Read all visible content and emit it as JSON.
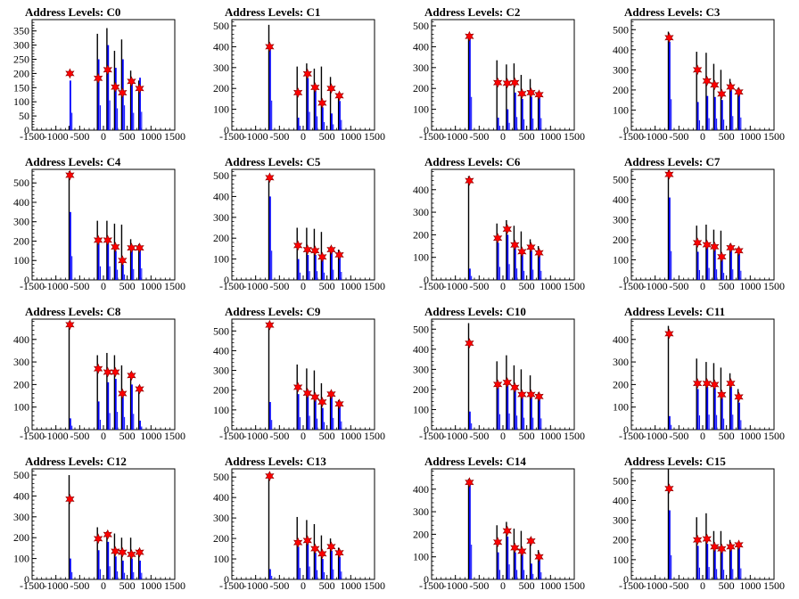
{
  "chart_data": [
    {
      "type": "histogram",
      "title": "Address Levels: C0",
      "xlim": [
        -1500,
        1500
      ],
      "ylim": [
        0,
        390
      ],
      "xticks": [
        -1500,
        -1000,
        -500,
        0,
        500,
        1000,
        1500
      ],
      "xtick_labels": [
        "-1500",
        "-1000",
        "-500",
        "0",
        "500",
        "1000",
        "1500"
      ],
      "yticks": [
        0,
        50,
        100,
        150,
        200,
        250,
        300,
        350
      ],
      "peaks_x": [
        -705,
        -110,
        90,
        250,
        400,
        590,
        760
      ],
      "black_bars": [
        15,
        340,
        360,
        280,
        320,
        210,
        175
      ],
      "blue_bars": [
        175,
        250,
        300,
        220,
        250,
        175,
        185
      ],
      "markers": [
        200,
        183,
        213,
        152,
        132,
        172,
        147
      ]
    },
    {
      "type": "histogram",
      "title": "Address Levels: C1",
      "xlim": [
        -1500,
        1500
      ],
      "ylim": [
        0,
        530
      ],
      "xticks": [
        -1500,
        -1000,
        -500,
        0,
        500,
        1000,
        1500
      ],
      "xtick_labels": [
        "-1500",
        "-1000",
        "-500",
        "0",
        "500",
        "1000",
        "1500"
      ],
      "yticks": [
        0,
        100,
        200,
        300,
        400,
        500
      ],
      "peaks_x": [
        -705,
        -110,
        90,
        250,
        400,
        590,
        760
      ],
      "black_bars": [
        505,
        305,
        320,
        295,
        305,
        255,
        175
      ],
      "blue_bars": [
        405,
        60,
        250,
        190,
        110,
        80,
        140
      ],
      "markers": [
        400,
        180,
        270,
        205,
        130,
        200,
        165
      ]
    },
    {
      "type": "histogram",
      "title": "Address Levels: C2",
      "xlim": [
        -1500,
        1500
      ],
      "ylim": [
        0,
        530
      ],
      "xticks": [
        -1500,
        -1000,
        -500,
        0,
        500,
        1000,
        1500
      ],
      "xtick_labels": [
        "-1500",
        "-1000",
        "-500",
        "0",
        "500",
        "1000",
        "1500"
      ],
      "yticks": [
        0,
        100,
        200,
        300,
        400,
        500
      ],
      "peaks_x": [
        -705,
        -110,
        90,
        250,
        400,
        590,
        760
      ],
      "black_bars": [
        455,
        335,
        315,
        320,
        265,
        245,
        185
      ],
      "blue_bars": [
        455,
        60,
        100,
        180,
        150,
        160,
        165
      ],
      "markers": [
        450,
        228,
        225,
        228,
        175,
        180,
        170
      ]
    },
    {
      "type": "histogram",
      "title": "Address Levels: C3",
      "xlim": [
        -1500,
        1500
      ],
      "ylim": [
        0,
        550
      ],
      "xticks": [
        -1500,
        -1000,
        -500,
        0,
        500,
        1000,
        1500
      ],
      "xtick_labels": [
        "-1500",
        "-1000",
        "-500",
        "0",
        "500",
        "1000",
        "1500"
      ],
      "yticks": [
        0,
        100,
        200,
        300,
        400,
        500
      ],
      "peaks_x": [
        -705,
        -110,
        90,
        250,
        400,
        590,
        760
      ],
      "black_bars": [
        490,
        390,
        385,
        330,
        300,
        255,
        210
      ],
      "blue_bars": [
        440,
        140,
        170,
        165,
        150,
        200,
        180
      ],
      "markers": [
        460,
        300,
        245,
        225,
        180,
        215,
        190
      ]
    },
    {
      "type": "histogram",
      "title": "Address Levels: C4",
      "xlim": [
        -1500,
        1500
      ],
      "ylim": [
        0,
        570
      ],
      "xticks": [
        -1500,
        -1000,
        -500,
        0,
        500,
        1000,
        1500
      ],
      "xtick_labels": [
        "-1500",
        "-1000",
        "-500",
        "0",
        "500",
        "1000",
        "1500"
      ],
      "yticks": [
        0,
        100,
        200,
        300,
        400,
        500
      ],
      "peaks_x": [
        -705,
        -110,
        90,
        250,
        400,
        590,
        760
      ],
      "black_bars": [
        560,
        305,
        305,
        290,
        285,
        210,
        185
      ],
      "blue_bars": [
        350,
        200,
        200,
        150,
        80,
        160,
        170
      ],
      "markers": [
        540,
        205,
        205,
        170,
        100,
        165,
        165
      ]
    },
    {
      "type": "histogram",
      "title": "Address Levels: C5",
      "xlim": [
        -1500,
        1500
      ],
      "ylim": [
        0,
        530
      ],
      "xticks": [
        -1500,
        -1000,
        -500,
        0,
        500,
        1000,
        1500
      ],
      "xtick_labels": [
        "-1500",
        "-1000",
        "-500",
        "0",
        "500",
        "1000",
        "1500"
      ],
      "yticks": [
        0,
        100,
        200,
        300,
        400,
        500
      ],
      "peaks_x": [
        -705,
        -110,
        90,
        250,
        400,
        590,
        760
      ],
      "black_bars": [
        500,
        250,
        250,
        245,
        230,
        160,
        145
      ],
      "blue_bars": [
        400,
        100,
        120,
        120,
        100,
        140,
        110
      ],
      "markers": [
        490,
        165,
        145,
        140,
        110,
        145,
        120
      ]
    },
    {
      "type": "histogram",
      "title": "Address Levels: C6",
      "xlim": [
        -1500,
        1500
      ],
      "ylim": [
        0,
        490
      ],
      "xticks": [
        -1500,
        -1000,
        -500,
        0,
        500,
        1000,
        1500
      ],
      "xtick_labels": [
        "-1500",
        "-1000",
        "-500",
        "0",
        "500",
        "1000",
        "1500"
      ],
      "yticks": [
        0,
        100,
        200,
        300,
        400
      ],
      "peaks_x": [
        -705,
        -110,
        90,
        250,
        400,
        590,
        760
      ],
      "black_bars": [
        460,
        250,
        265,
        240,
        215,
        180,
        150
      ],
      "blue_bars": [
        50,
        165,
        200,
        145,
        115,
        130,
        115
      ],
      "markers": [
        440,
        185,
        225,
        155,
        125,
        145,
        120
      ]
    },
    {
      "type": "histogram",
      "title": "Address Levels: C7",
      "xlim": [
        -1500,
        1500
      ],
      "ylim": [
        0,
        550
      ],
      "xticks": [
        -1500,
        -1000,
        -500,
        0,
        500,
        1000,
        1500
      ],
      "xtick_labels": [
        "-1500",
        "-1000",
        "-500",
        "0",
        "500",
        "1000",
        "1500"
      ],
      "yticks": [
        0,
        100,
        200,
        300,
        400,
        500
      ],
      "peaks_x": [
        -705,
        -110,
        90,
        250,
        400,
        590,
        760
      ],
      "black_bars": [
        545,
        270,
        275,
        250,
        245,
        180,
        160
      ],
      "blue_bars": [
        410,
        140,
        170,
        150,
        100,
        150,
        130
      ],
      "markers": [
        525,
        185,
        175,
        165,
        115,
        160,
        145
      ]
    },
    {
      "type": "histogram",
      "title": "Address Levels: C8",
      "xlim": [
        -1500,
        1500
      ],
      "ylim": [
        0,
        490
      ],
      "xticks": [
        -1500,
        -1000,
        -500,
        0,
        500,
        1000,
        1500
      ],
      "xtick_labels": [
        "-1500",
        "-1000",
        "-500",
        "0",
        "500",
        "1000",
        "1500"
      ],
      "yticks": [
        0,
        100,
        200,
        300,
        400
      ],
      "peaks_x": [
        -705,
        -110,
        90,
        250,
        400,
        590,
        760
      ],
      "black_bars": [
        480,
        330,
        340,
        330,
        285,
        255,
        195
      ],
      "blue_bars": [
        50,
        125,
        210,
        225,
        160,
        200,
        40
      ],
      "markers": [
        465,
        270,
        255,
        255,
        160,
        240,
        180
      ]
    },
    {
      "type": "histogram",
      "title": "Address Levels: C9",
      "xlim": [
        -1500,
        1500
      ],
      "ylim": [
        0,
        560
      ],
      "xticks": [
        -1500,
        -1000,
        -500,
        0,
        500,
        1000,
        1500
      ],
      "xtick_labels": [
        "-1500",
        "-1000",
        "-500",
        "0",
        "500",
        "1000",
        "1500"
      ],
      "yticks": [
        0,
        100,
        200,
        300,
        400,
        500
      ],
      "peaks_x": [
        -705,
        -110,
        90,
        250,
        400,
        590,
        760
      ],
      "black_bars": [
        545,
        330,
        310,
        300,
        235,
        195,
        150
      ],
      "blue_bars": [
        140,
        180,
        200,
        160,
        110,
        170,
        120
      ],
      "markers": [
        530,
        215,
        185,
        165,
        140,
        180,
        130
      ]
    },
    {
      "type": "histogram",
      "title": "Address Levels: C10",
      "xlim": [
        -1500,
        1500
      ],
      "ylim": [
        0,
        550
      ],
      "xticks": [
        -1500,
        -1000,
        -500,
        0,
        500,
        1000,
        1500
      ],
      "xtick_labels": [
        "-1500",
        "-1000",
        "-500",
        "0",
        "500",
        "1000",
        "1500"
      ],
      "yticks": [
        0,
        100,
        200,
        300,
        400,
        500
      ],
      "peaks_x": [
        -705,
        -110,
        90,
        250,
        400,
        590,
        760
      ],
      "black_bars": [
        530,
        340,
        370,
        320,
        300,
        270,
        185
      ],
      "blue_bars": [
        90,
        220,
        230,
        200,
        170,
        170,
        160
      ],
      "markers": [
        430,
        225,
        235,
        210,
        175,
        175,
        165
      ]
    },
    {
      "type": "histogram",
      "title": "Address Levels: C11",
      "xlim": [
        -1500,
        1500
      ],
      "ylim": [
        0,
        490
      ],
      "xticks": [
        -1500,
        -1000,
        -500,
        0,
        500,
        1000,
        1500
      ],
      "xtick_labels": [
        "-1500",
        "-1000",
        "-500",
        "0",
        "500",
        "1000",
        "1500"
      ],
      "yticks": [
        0,
        100,
        200,
        300,
        400
      ],
      "peaks_x": [
        -705,
        -110,
        90,
        250,
        400,
        590,
        760
      ],
      "black_bars": [
        460,
        315,
        300,
        295,
        275,
        250,
        180
      ],
      "blue_bars": [
        60,
        180,
        190,
        185,
        140,
        190,
        120
      ],
      "markers": [
        425,
        205,
        205,
        200,
        155,
        205,
        145
      ]
    },
    {
      "type": "histogram",
      "title": "Address Levels: C12",
      "xlim": [
        -1500,
        1500
      ],
      "ylim": [
        0,
        530
      ],
      "xticks": [
        -1500,
        -1000,
        -500,
        0,
        500,
        1000,
        1500
      ],
      "xtick_labels": [
        "-1500",
        "-1000",
        "-500",
        "0",
        "500",
        "1000",
        "1500"
      ],
      "yticks": [
        0,
        100,
        200,
        300,
        400,
        500
      ],
      "peaks_x": [
        -705,
        -110,
        90,
        250,
        400,
        590,
        760
      ],
      "black_bars": [
        500,
        250,
        230,
        220,
        200,
        200,
        145
      ],
      "blue_bars": [
        100,
        140,
        180,
        110,
        90,
        100,
        90
      ],
      "markers": [
        385,
        195,
        215,
        135,
        130,
        120,
        130
      ]
    },
    {
      "type": "histogram",
      "title": "Address Levels: C13",
      "xlim": [
        -1500,
        1500
      ],
      "ylim": [
        0,
        540
      ],
      "xticks": [
        -1500,
        -1000,
        -500,
        0,
        500,
        1000,
        1500
      ],
      "xtick_labels": [
        "-1500",
        "-1000",
        "-500",
        "0",
        "500",
        "1000",
        "1500"
      ],
      "yticks": [
        0,
        100,
        200,
        300,
        400,
        500
      ],
      "peaks_x": [
        -705,
        -110,
        90,
        250,
        400,
        590,
        760
      ],
      "black_bars": [
        520,
        305,
        290,
        270,
        215,
        200,
        155
      ],
      "blue_bars": [
        50,
        160,
        180,
        130,
        100,
        140,
        110
      ],
      "markers": [
        505,
        180,
        190,
        150,
        125,
        160,
        130
      ]
    },
    {
      "type": "histogram",
      "title": "Address Levels: C14",
      "xlim": [
        -1500,
        1500
      ],
      "ylim": [
        0,
        490
      ],
      "xticks": [
        -1500,
        -1000,
        -500,
        0,
        500,
        1000,
        1500
      ],
      "xtick_labels": [
        "-1500",
        "-1000",
        "-500",
        "0",
        "500",
        "1000",
        "1500"
      ],
      "yticks": [
        0,
        100,
        200,
        300,
        400
      ],
      "peaks_x": [
        -705,
        -110,
        90,
        250,
        400,
        590,
        760
      ],
      "black_bars": [
        445,
        240,
        255,
        225,
        215,
        185,
        130
      ],
      "blue_bars": [
        440,
        120,
        190,
        120,
        120,
        70,
        90
      ],
      "markers": [
        430,
        165,
        215,
        140,
        125,
        170,
        100
      ]
    },
    {
      "type": "histogram",
      "title": "Address Levels: C15",
      "xlim": [
        -1500,
        1500
      ],
      "ylim": [
        0,
        560
      ],
      "xticks": [
        -1500,
        -1000,
        -500,
        0,
        500,
        1000,
        1500
      ],
      "xtick_labels": [
        "-1500",
        "-1000",
        "-500",
        "0",
        "500",
        "1000",
        "1500"
      ],
      "yticks": [
        0,
        100,
        200,
        300,
        400,
        500
      ],
      "peaks_x": [
        -705,
        -110,
        90,
        250,
        400,
        590,
        760
      ],
      "black_bars": [
        560,
        315,
        335,
        245,
        245,
        200,
        175
      ],
      "blue_bars": [
        350,
        170,
        180,
        150,
        140,
        150,
        160
      ],
      "markers": [
        460,
        200,
        205,
        165,
        155,
        165,
        175
      ]
    }
  ],
  "colors": {
    "black_series": "#000000",
    "blue_series": "#0000ff",
    "marker": "#ff0000",
    "marker_edge": "#8b0000",
    "axis": "#000000"
  }
}
